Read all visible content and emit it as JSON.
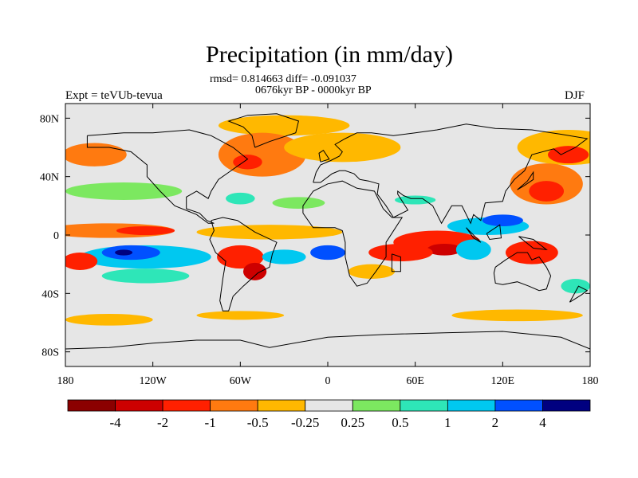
{
  "title": "Precipitation (in mm/day)",
  "stats_line": "rmsd= 0.814663 diff= -0.091037",
  "period_line": "0676kyr BP - 0000kyr BP",
  "experiment_label": "Expt = teVUb-tevua",
  "season_label": "DJF",
  "map": {
    "projection": "cylindrical equidistant",
    "lon_range": [
      -180,
      180
    ],
    "lat_range": [
      -90,
      90
    ],
    "background_color": "#e6e6e6",
    "x_ticks": [
      {
        "lon": -180,
        "label": "180"
      },
      {
        "lon": -120,
        "label": "120W"
      },
      {
        "lon": -60,
        "label": "60W"
      },
      {
        "lon": 0,
        "label": "0"
      },
      {
        "lon": 60,
        "label": "60E"
      },
      {
        "lon": 120,
        "label": "120E"
      },
      {
        "lon": 180,
        "label": "180"
      }
    ],
    "y_ticks": [
      {
        "lat": 80,
        "label": "80N"
      },
      {
        "lat": 40,
        "label": "40N"
      },
      {
        "lat": 0,
        "label": "0"
      },
      {
        "lat": -40,
        "label": "40S"
      },
      {
        "lat": -80,
        "label": "80S"
      }
    ]
  },
  "colorbar": {
    "colors": [
      "#8b0000",
      "#cd0000",
      "#ff2000",
      "#ff7a10",
      "#ffb800",
      "#e6e6e6",
      "#7ce860",
      "#2ee6b8",
      "#00c8f0",
      "#0050ff",
      "#000080"
    ],
    "labels": [
      "-4",
      "-2",
      "-1",
      "-0.5",
      "-0.25",
      "0.25",
      "0.5",
      "1",
      "2",
      "4"
    ]
  },
  "anomaly_regions": [
    {
      "lon": 165,
      "lat": 60,
      "rx": 35,
      "ry": 12,
      "color": "#ffb800"
    },
    {
      "lon": -160,
      "lat": 55,
      "rx": 22,
      "ry": 8,
      "color": "#ff7a10"
    },
    {
      "lon": 165,
      "lat": 55,
      "rx": 14,
      "ry": 6,
      "color": "#ff2000"
    },
    {
      "lon": -30,
      "lat": 75,
      "rx": 45,
      "ry": 7,
      "color": "#ffb800"
    },
    {
      "lon": -45,
      "lat": 55,
      "rx": 30,
      "ry": 15,
      "color": "#ff7a10"
    },
    {
      "lon": -55,
      "lat": 50,
      "rx": 10,
      "ry": 5,
      "color": "#ff2000"
    },
    {
      "lon": 10,
      "lat": 60,
      "rx": 40,
      "ry": 10,
      "color": "#ffb800"
    },
    {
      "lon": 150,
      "lat": 35,
      "rx": 25,
      "ry": 14,
      "color": "#ff7a10"
    },
    {
      "lon": 150,
      "lat": 30,
      "rx": 12,
      "ry": 7,
      "color": "#ff2000"
    },
    {
      "lon": -140,
      "lat": 30,
      "rx": 40,
      "ry": 6,
      "color": "#7ce860"
    },
    {
      "lon": -60,
      "lat": 25,
      "rx": 10,
      "ry": 4,
      "color": "#2ee6b8"
    },
    {
      "lon": -20,
      "lat": 22,
      "rx": 18,
      "ry": 4,
      "color": "#7ce860"
    },
    {
      "lon": 60,
      "lat": 24,
      "rx": 14,
      "ry": 3,
      "color": "#2ee6b8"
    },
    {
      "lon": -150,
      "lat": 3,
      "rx": 45,
      "ry": 5,
      "color": "#ff7a10"
    },
    {
      "lon": -125,
      "lat": 3,
      "rx": 20,
      "ry": 3,
      "color": "#ff2000"
    },
    {
      "lon": -40,
      "lat": 2,
      "rx": 50,
      "ry": 5,
      "color": "#ffb800"
    },
    {
      "lon": 110,
      "lat": 6,
      "rx": 28,
      "ry": 6,
      "color": "#00c8f0"
    },
    {
      "lon": 120,
      "lat": 10,
      "rx": 14,
      "ry": 4,
      "color": "#0050ff"
    },
    {
      "lon": 75,
      "lat": -5,
      "rx": 30,
      "ry": 8,
      "color": "#ff2000"
    },
    {
      "lon": 80,
      "lat": -10,
      "rx": 12,
      "ry": 4,
      "color": "#cd0000"
    },
    {
      "lon": 100,
      "lat": -10,
      "rx": 12,
      "ry": 7,
      "color": "#00c8f0"
    },
    {
      "lon": 140,
      "lat": -12,
      "rx": 18,
      "ry": 8,
      "color": "#ff2000"
    },
    {
      "lon": -125,
      "lat": -15,
      "rx": 45,
      "ry": 8,
      "color": "#00c8f0"
    },
    {
      "lon": -135,
      "lat": -12,
      "rx": 20,
      "ry": 5,
      "color": "#0050ff"
    },
    {
      "lon": -140,
      "lat": -12,
      "rx": 6,
      "ry": 2,
      "color": "#000080"
    },
    {
      "lon": -125,
      "lat": -28,
      "rx": 30,
      "ry": 5,
      "color": "#2ee6b8"
    },
    {
      "lon": -170,
      "lat": -18,
      "rx": 12,
      "ry": 6,
      "color": "#ff2000"
    },
    {
      "lon": -60,
      "lat": -15,
      "rx": 16,
      "ry": 8,
      "color": "#ff2000"
    },
    {
      "lon": -50,
      "lat": -25,
      "rx": 8,
      "ry": 6,
      "color": "#cd0000"
    },
    {
      "lon": -30,
      "lat": -15,
      "rx": 15,
      "ry": 5,
      "color": "#00c8f0"
    },
    {
      "lon": 0,
      "lat": -12,
      "rx": 12,
      "ry": 5,
      "color": "#0050ff"
    },
    {
      "lon": 50,
      "lat": -12,
      "rx": 22,
      "ry": 6,
      "color": "#ff2000"
    },
    {
      "lon": 30,
      "lat": -25,
      "rx": 16,
      "ry": 5,
      "color": "#ffb800"
    },
    {
      "lon": -150,
      "lat": -58,
      "rx": 30,
      "ry": 4,
      "color": "#ffb800"
    },
    {
      "lon": -60,
      "lat": -55,
      "rx": 30,
      "ry": 3,
      "color": "#ffb800"
    },
    {
      "lon": 130,
      "lat": -55,
      "rx": 45,
      "ry": 4,
      "color": "#ffb800"
    },
    {
      "lon": 170,
      "lat": -35,
      "rx": 10,
      "ry": 5,
      "color": "#2ee6b8"
    }
  ]
}
